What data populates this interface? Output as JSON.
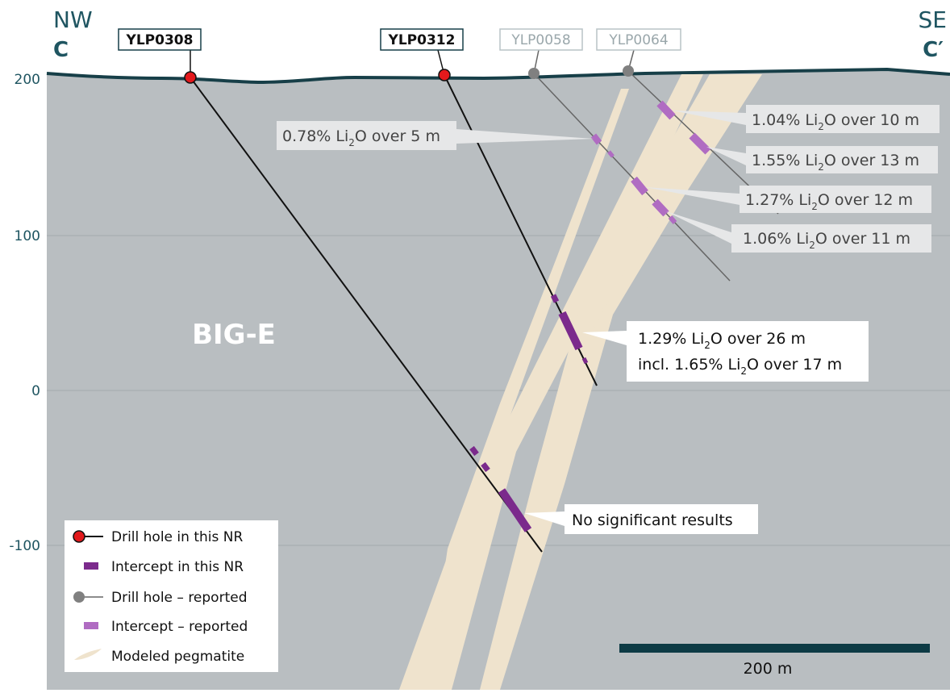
{
  "section": {
    "left": {
      "direction": "NW",
      "label": "C"
    },
    "right": {
      "direction": "SE",
      "label": "C′"
    }
  },
  "elevation_ticks": [
    "200",
    "100",
    "0",
    "-100"
  ],
  "area_label": "BIG-E",
  "drill_holes": [
    {
      "id": "YLP0308"
    },
    {
      "id": "YLP0312"
    },
    {
      "id": "YLP0058"
    },
    {
      "id": "YLP0064"
    }
  ],
  "intercepts": [
    {
      "pre": "0.78% Li",
      "sub": "2",
      "post": "O over 5 m"
    },
    {
      "pre": "1.04% Li",
      "sub": "2",
      "post": "O over 10 m"
    },
    {
      "pre": "1.55% Li",
      "sub": "2",
      "post": "O over 13 m"
    },
    {
      "pre": "1.27% Li",
      "sub": "2",
      "post": "O over 12 m"
    },
    {
      "pre": "1.06% Li",
      "sub": "2",
      "post": "O over 11 m"
    }
  ],
  "highlight": [
    {
      "pre": "1.29% Li",
      "sub": "2",
      "post": "O over 26 m"
    },
    {
      "pre": "incl. 1.65% Li",
      "sub": "2",
      "post": "O over 17 m"
    }
  ],
  "no_result": "No significant results",
  "legend": [
    "Drill hole in this NR",
    "Intercept in this NR",
    "Drill hole – reported",
    "Intercept – reported",
    "Modeled pegmatite"
  ],
  "scale_bar": "200 m"
}
